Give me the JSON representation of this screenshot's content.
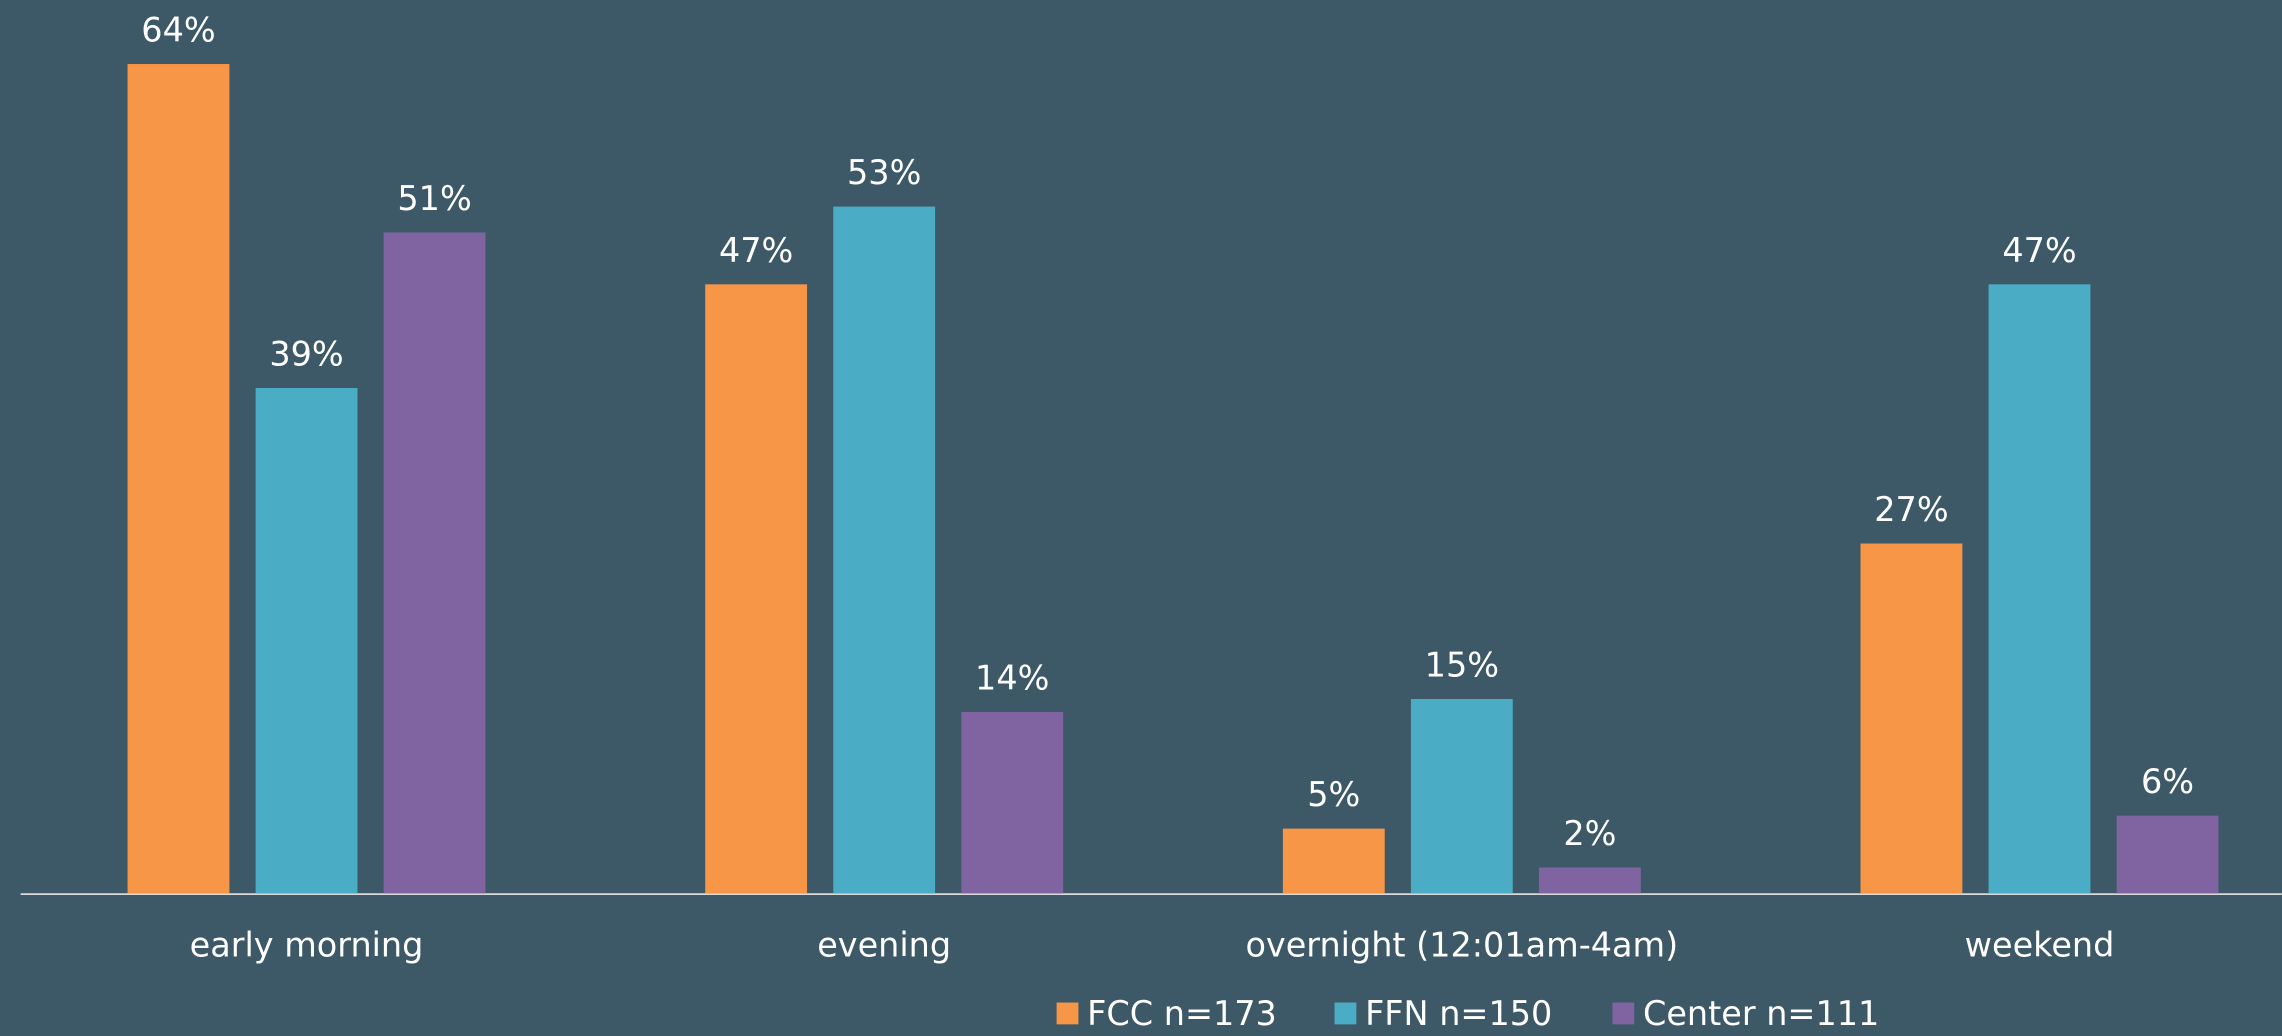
{
  "chart_data": {
    "type": "bar",
    "categories": [
      "early morning",
      "evening",
      "overnight (12:01am-4am)",
      "weekend"
    ],
    "series": [
      {
        "name": "FCC n=173",
        "color": "#f79646",
        "values": [
          64,
          47,
          5,
          27
        ],
        "value_labels": [
          "64%",
          "47%",
          "5%",
          "27%"
        ]
      },
      {
        "name": "FFN n=150",
        "color": "#4bacc6",
        "values": [
          39,
          53,
          15,
          47
        ],
        "value_labels": [
          "39%",
          "53%",
          "15%",
          "47%"
        ]
      },
      {
        "name": "Center n=111",
        "color": "#8064a2",
        "values": [
          51,
          14,
          2,
          6
        ],
        "value_labels": [
          "51%",
          "14%",
          "2%",
          "6%"
        ]
      }
    ],
    "legend": "bottom"
  }
}
